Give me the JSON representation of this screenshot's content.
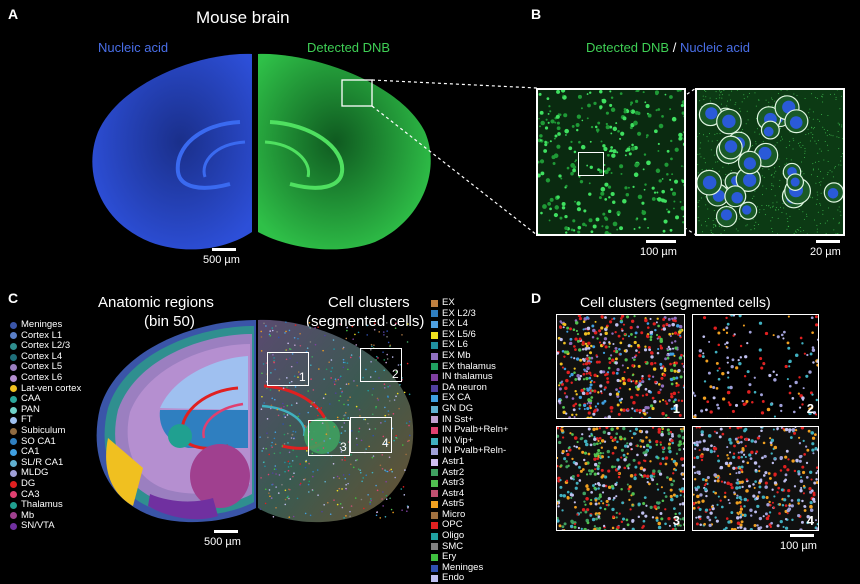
{
  "panels": {
    "A": {
      "label": "A",
      "title": "Mouse brain",
      "left_label": "Nucleic acid",
      "right_label": "Detected DNB",
      "scale": "500 µm",
      "colors": {
        "nucleic": "#2b4fd6",
        "dnb": "#2fbf46"
      }
    },
    "B": {
      "label": "B",
      "title_green": "Detected DNB",
      "title_sep": " / ",
      "title_blue": "Nucleic acid",
      "scale_left": "100 µm",
      "scale_right": "20 µm"
    },
    "C": {
      "label": "C",
      "left_title_1": "Anatomic regions",
      "left_title_2": "(bin 50)",
      "right_title_1": "Cell clusters",
      "right_title_2": "(segmented cells)",
      "scale": "500 µm",
      "boxes": [
        "1",
        "2",
        "3",
        "4"
      ],
      "regions": [
        {
          "label": "Meninges",
          "color": "#3a55a8"
        },
        {
          "label": "Cortex L1",
          "color": "#5a7fc8"
        },
        {
          "label": "Cortex L2/3",
          "color": "#2f8f8f"
        },
        {
          "label": "Cortex L4",
          "color": "#1f6f7a"
        },
        {
          "label": "Cortex L5",
          "color": "#9b7fc0"
        },
        {
          "label": "Cortex L6",
          "color": "#b58fd0"
        },
        {
          "label": "Lat-ven cortex",
          "color": "#f0c020"
        },
        {
          "label": "CAA",
          "color": "#2aa59a"
        },
        {
          "label": "PAN",
          "color": "#6fd0c8"
        },
        {
          "label": "FT",
          "color": "#9fc0f0"
        },
        {
          "label": "Subiculum",
          "color": "#8f6a40"
        },
        {
          "label": "SO CA1",
          "color": "#2f7fc0"
        },
        {
          "label": "CA1",
          "color": "#3f9fe0"
        },
        {
          "label": "SL/R CA1",
          "color": "#60b0d0"
        },
        {
          "label": "MLDG",
          "color": "#a0a0d8"
        },
        {
          "label": "DG",
          "color": "#e02020"
        },
        {
          "label": "CA3",
          "color": "#e04070"
        },
        {
          "label": "Thalamus",
          "color": "#20a090"
        },
        {
          "label": "Mb",
          "color": "#a0408f"
        },
        {
          "label": "SN/VTA",
          "color": "#7030a0"
        }
      ],
      "clusters": [
        {
          "label": "EX",
          "color": "#c08040"
        },
        {
          "label": "EX L2/3",
          "color": "#2f7fc0"
        },
        {
          "label": "EX L4",
          "color": "#4fa0e0"
        },
        {
          "label": "EX L5/6",
          "color": "#f0e020"
        },
        {
          "label": "EX L6",
          "color": "#2090a0"
        },
        {
          "label": "EX Mb",
          "color": "#9070c0"
        },
        {
          "label": "EX thalamus",
          "color": "#20a060"
        },
        {
          "label": "IN thalamus",
          "color": "#8040a0"
        },
        {
          "label": "DA neuron",
          "color": "#5040a0"
        },
        {
          "label": "EX CA",
          "color": "#3f9fe0"
        },
        {
          "label": "GN DG",
          "color": "#60b0d0"
        },
        {
          "label": "IN Sst+",
          "color": "#c0a0d0"
        },
        {
          "label": "IN Pvalb+Reln+",
          "color": "#e04070"
        },
        {
          "label": "IN Vip+",
          "color": "#40b0c0"
        },
        {
          "label": "IN Pvalb+Reln-",
          "color": "#a0a0d8"
        },
        {
          "label": "Astr1",
          "color": "#d0c0f0"
        },
        {
          "label": "Astr2",
          "color": "#3fa060"
        },
        {
          "label": "Astr3",
          "color": "#50c050"
        },
        {
          "label": "Astr4",
          "color": "#c05070"
        },
        {
          "label": "Astr5",
          "color": "#f0a020"
        },
        {
          "label": "Micro",
          "color": "#a07040"
        },
        {
          "label": "OPC",
          "color": "#e02020"
        },
        {
          "label": "Oligo",
          "color": "#20a0a0"
        },
        {
          "label": "SMC",
          "color": "#808080"
        },
        {
          "label": "Ery",
          "color": "#40c040"
        },
        {
          "label": "Meninges",
          "color": "#3050b0"
        },
        {
          "label": "Endo",
          "color": "#c0c0f0"
        }
      ]
    },
    "D": {
      "label": "D",
      "title": "Cell clusters (segmented cells)",
      "tiles": [
        "1",
        "2",
        "3",
        "4"
      ],
      "scale": "100 µm"
    }
  }
}
